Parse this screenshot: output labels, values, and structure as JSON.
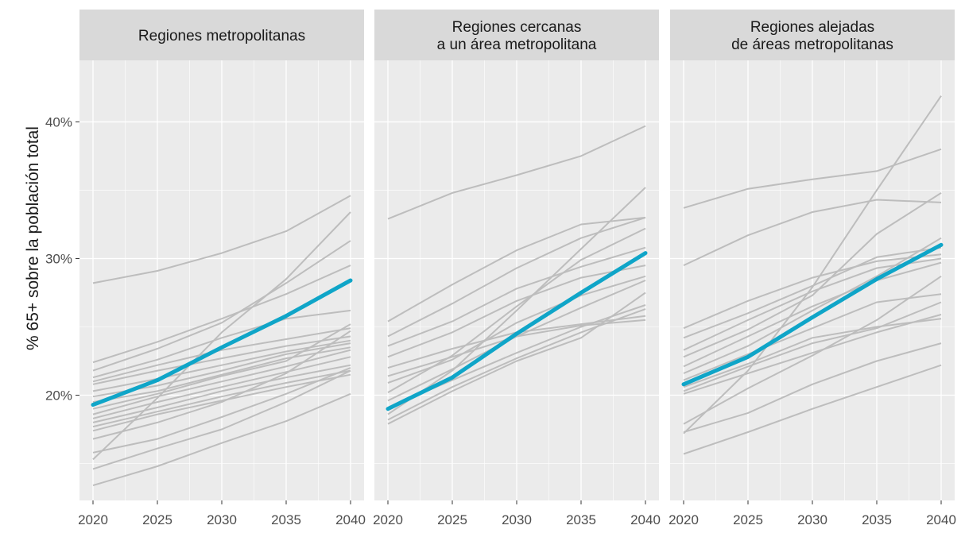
{
  "chart_data": {
    "type": "line",
    "ylabel": "% 65+ sobre la población total",
    "xlabel": "",
    "x": [
      2020,
      2025,
      2030,
      2035,
      2040
    ],
    "x_ticks": [
      "2020",
      "2025",
      "2030",
      "2035",
      "2040"
    ],
    "y_ticks": [
      {
        "value": 20,
        "label": "20%"
      },
      {
        "value": 30,
        "label": "30%"
      },
      {
        "value": 40,
        "label": "40%"
      }
    ],
    "ylim": [
      12.3,
      44.5
    ],
    "grid": true,
    "colors": {
      "highlight": "#0fa5c8",
      "others": "#bdbdbd",
      "panel_bg": "#ebebeb",
      "strip_bg": "#d9d9d9",
      "grid": "#ffffff"
    },
    "panels": [
      {
        "title_lines": [
          "Regiones metropolitanas"
        ],
        "highlight": [
          19.3,
          21.1,
          23.5,
          25.8,
          28.4
        ],
        "others": [
          [
            28.2,
            29.1,
            30.4,
            32.0,
            34.6
          ],
          [
            22.4,
            23.9,
            25.6,
            27.4,
            29.5
          ],
          [
            21.8,
            23.4,
            25.3,
            28.2,
            31.3
          ],
          [
            21.3,
            22.6,
            24.2,
            25.6,
            26.2
          ],
          [
            21.0,
            22.2,
            23.3,
            24.1,
            24.9
          ],
          [
            20.8,
            21.8,
            22.7,
            23.6,
            24.3
          ],
          [
            20.3,
            21.2,
            22.2,
            23.2,
            24.0
          ],
          [
            19.9,
            20.7,
            21.8,
            23.0,
            23.8
          ],
          [
            19.5,
            20.3,
            21.5,
            22.7,
            23.5
          ],
          [
            19.0,
            20.1,
            21.4,
            22.5,
            25.2
          ],
          [
            18.6,
            19.9,
            21.0,
            22.1,
            23.3
          ],
          [
            18.3,
            19.5,
            20.6,
            21.7,
            22.8
          ],
          [
            18.0,
            19.1,
            20.3,
            21.3,
            22.2
          ],
          [
            17.7,
            18.8,
            19.9,
            20.9,
            21.8
          ],
          [
            17.4,
            18.6,
            19.6,
            20.6,
            21.5
          ],
          [
            16.8,
            18.0,
            19.5,
            21.6,
            24.7
          ],
          [
            15.8,
            16.8,
            18.4,
            20.1,
            22.0
          ],
          [
            15.3,
            19.8,
            24.6,
            28.5,
            33.4
          ],
          [
            14.6,
            16.1,
            17.5,
            19.5,
            21.8
          ],
          [
            13.4,
            14.8,
            16.5,
            18.1,
            20.1
          ]
        ]
      },
      {
        "title_lines": [
          "Regiones cercanas",
          "a un área metropolitana"
        ],
        "highlight": [
          19.0,
          21.3,
          24.5,
          27.5,
          30.4
        ],
        "others": [
          [
            32.9,
            34.8,
            36.1,
            37.5,
            39.7
          ],
          [
            25.4,
            28.1,
            30.6,
            32.5,
            33.0
          ],
          [
            24.3,
            26.7,
            29.3,
            31.5,
            33.0
          ],
          [
            23.6,
            25.4,
            27.8,
            29.4,
            30.8
          ],
          [
            22.8,
            24.6,
            26.9,
            28.6,
            29.5
          ],
          [
            22.0,
            23.4,
            24.6,
            25.2,
            25.8
          ],
          [
            21.4,
            22.8,
            24.3,
            25.1,
            25.5
          ],
          [
            20.9,
            22.6,
            25.3,
            27.3,
            28.7
          ],
          [
            20.2,
            22.9,
            26.5,
            29.9,
            32.2
          ],
          [
            19.6,
            21.9,
            24.3,
            26.4,
            28.4
          ],
          [
            19.1,
            21.1,
            23.1,
            25.0,
            26.6
          ],
          [
            18.6,
            21.8,
            26.2,
            30.7,
            35.2
          ],
          [
            18.2,
            20.6,
            22.7,
            24.6,
            26.3
          ],
          [
            17.9,
            20.3,
            22.5,
            24.2,
            27.5
          ]
        ]
      },
      {
        "title_lines": [
          "Regiones alejadas",
          "de áreas metropolitanas"
        ],
        "highlight": [
          20.8,
          22.8,
          25.7,
          28.5,
          31.0
        ],
        "others": [
          [
            33.7,
            35.1,
            35.8,
            36.4,
            38.0
          ],
          [
            29.5,
            31.7,
            33.4,
            34.3,
            34.1
          ],
          [
            24.9,
            26.9,
            28.6,
            29.8,
            30.3
          ],
          [
            24.2,
            26.0,
            28.0,
            30.1,
            30.8
          ],
          [
            23.3,
            25.5,
            27.6,
            29.3,
            30.0
          ],
          [
            22.8,
            24.8,
            27.3,
            31.8,
            34.8
          ],
          [
            22.1,
            24.3,
            26.5,
            28.4,
            29.7
          ],
          [
            21.6,
            23.6,
            26.2,
            28.7,
            31.5
          ],
          [
            21.1,
            23.0,
            24.9,
            26.8,
            27.4
          ],
          [
            20.6,
            22.3,
            24.2,
            25.0,
            25.6
          ],
          [
            20.3,
            22.1,
            23.8,
            24.9,
            26.8
          ],
          [
            20.1,
            21.6,
            23.1,
            24.6,
            25.9
          ],
          [
            17.9,
            20.5,
            22.9,
            25.5,
            28.7
          ],
          [
            17.3,
            18.7,
            20.8,
            22.5,
            23.8
          ],
          [
            17.2,
            21.8,
            27.9,
            35.0,
            41.9
          ],
          [
            15.7,
            17.3,
            19.0,
            20.6,
            22.2
          ]
        ]
      }
    ]
  }
}
